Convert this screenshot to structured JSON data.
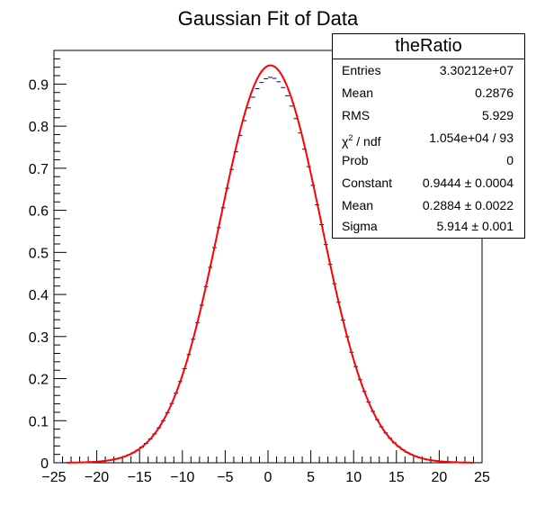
{
  "chart_data": {
    "type": "histogram",
    "title": "Gaussian Fit of Data",
    "xlim": [
      -25,
      25
    ],
    "ylim": [
      0,
      0.98
    ],
    "x_ticks": [
      "−25",
      "−20",
      "−15",
      "−10",
      "−5",
      "0",
      "5",
      "10",
      "15",
      "20",
      "25"
    ],
    "y_ticks": [
      "0",
      "0.1",
      "0.2",
      "0.3",
      "0.4",
      "0.5",
      "0.6",
      "0.7",
      "0.8",
      "0.9"
    ],
    "grid": false,
    "colors": {
      "data_points": "#000080",
      "fit_curve": "#ff0000"
    },
    "fit": {
      "function": "gaussian",
      "constant": 0.9444,
      "mean": 0.2884,
      "sigma": 5.914
    },
    "data_bin_range": [
      -25,
      25
    ],
    "data_bin_count": 100,
    "stats": {
      "name": "theRatio",
      "rows": [
        {
          "key": "Entries",
          "value": "3.30212e+07"
        },
        {
          "key": "Mean",
          "value": "0.2876"
        },
        {
          "key": "RMS",
          "value": "5.929"
        },
        {
          "key_main": "χ",
          "key_sup": "2",
          "key_rest": " / ndf",
          "value": "1.054e+04 / 93"
        },
        {
          "key": "Prob",
          "value": "0"
        },
        {
          "key": "Constant",
          "value": "0.9444 ± 0.0004"
        },
        {
          "key": "Mean",
          "value": "0.2884 ± 0.0022"
        },
        {
          "key": "Sigma",
          "value": "5.914 ± 0.001"
        }
      ]
    }
  }
}
